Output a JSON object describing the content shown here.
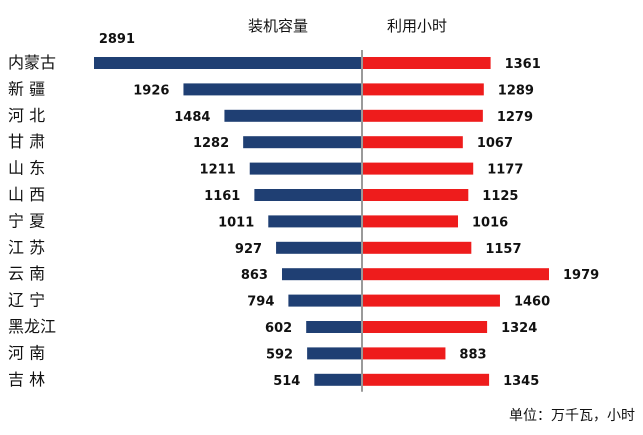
{
  "chart_data": {
    "type": "bar",
    "categories": [
      "内蒙古",
      "新 疆",
      "河 北",
      "甘 肃",
      "山 东",
      "山 西",
      "宁 夏",
      "江 苏",
      "云 南",
      "辽 宁",
      "黑龙江",
      "河 南",
      "吉 林"
    ],
    "series": [
      {
        "name": "装机容量",
        "values": [
          2891,
          1926,
          1484,
          1282,
          1211,
          1161,
          1011,
          927,
          863,
          794,
          602,
          592,
          514
        ]
      },
      {
        "name": "利用小时",
        "values": [
          1361,
          1289,
          1279,
          1067,
          1177,
          1125,
          1016,
          1157,
          1979,
          1460,
          1324,
          883,
          1345
        ]
      }
    ],
    "unit_note": "单位：万千瓦，小时",
    "colors": {
      "left_bar": "#1f3f73",
      "right_bar": "#ee1c1c",
      "center_line": "#9a9a9a"
    }
  }
}
